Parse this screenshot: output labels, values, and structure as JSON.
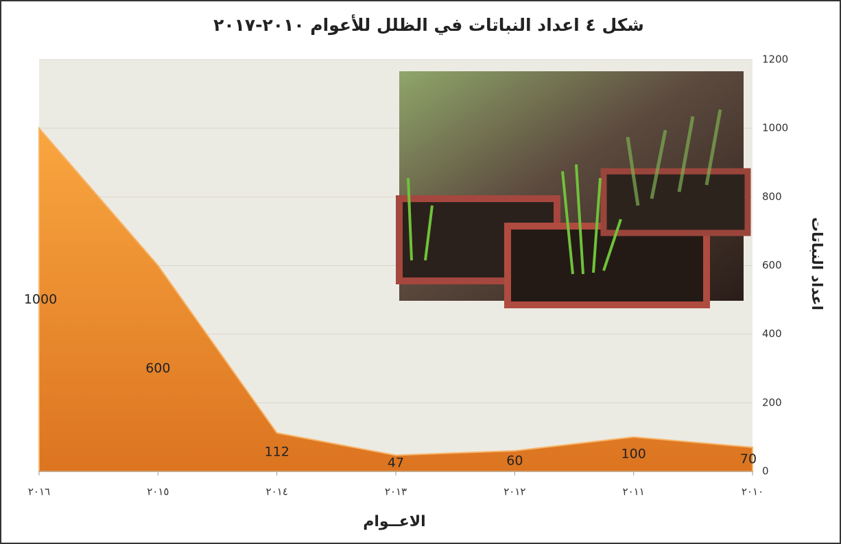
{
  "chart_data": {
    "type": "area",
    "title": "شكل ٤ اعداد النباتات في الظلل للأعوام ٢٠١٠-٢٠١٧",
    "x_label": "الاعــوام",
    "y_label": "اعداد النباتات",
    "categories": [
      "٢٠١٦",
      "٢٠١٥",
      "٢٠١٤",
      "٢٠١٣",
      "٢٠١٢",
      "٢٠١١",
      "٢٠١٠"
    ],
    "values": [
      1000,
      600,
      112,
      47,
      60,
      100,
      70
    ],
    "color": "#e8862a",
    "ylim": [
      0,
      1200
    ],
    "yticks": [
      0,
      200,
      400,
      600,
      800,
      1000,
      1200
    ],
    "y_axis_side": "right",
    "grid": true
  }
}
